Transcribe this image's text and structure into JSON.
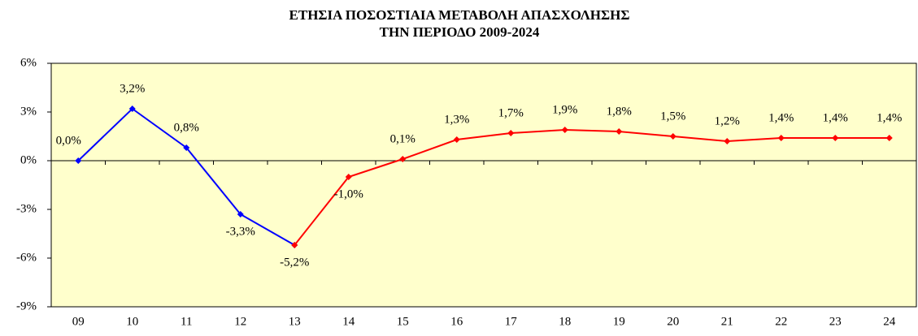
{
  "chart_data": {
    "type": "line",
    "title": "ΕΤΗΣΙΑ ΠΟΣΟΣΤΙΑΙΑ ΜΕΤΑΒΟΛΗ ΑΠΑΣΧΟΛΗΣΗΣ",
    "subtitle": "ΤΗΝ ΠΕΡΙΟΔΟ 2009-2024",
    "categories": [
      "09",
      "10",
      "11",
      "12",
      "13",
      "14",
      "15",
      "16",
      "17",
      "18",
      "19",
      "20",
      "21",
      "22",
      "23",
      "24"
    ],
    "series": [
      {
        "color": "#0000ff",
        "values": [
          0.0,
          3.2,
          0.8,
          -3.3,
          -5.2,
          null,
          null,
          null,
          null,
          null,
          null,
          null,
          null,
          null,
          null,
          null
        ],
        "value_labels": [
          "0,0%",
          "3,2%",
          "0,8%",
          "-3,3%",
          "-5,2%",
          null,
          null,
          null,
          null,
          null,
          null,
          null,
          null,
          null,
          null,
          null
        ]
      },
      {
        "color": "#ff0000",
        "values": [
          null,
          null,
          null,
          null,
          -5.2,
          -1.0,
          0.1,
          1.3,
          1.7,
          1.9,
          1.8,
          1.5,
          1.2,
          1.4,
          1.4,
          1.4
        ],
        "value_labels": [
          null,
          null,
          null,
          null,
          null,
          "-1,0%",
          "0,1%",
          "1,3%",
          "1,7%",
          "1,9%",
          "1,8%",
          "1,5%",
          "1,2%",
          "1,4%",
          "1,4%",
          "1,4%"
        ]
      }
    ],
    "ylim": [
      -9,
      6
    ],
    "yticks": [
      {
        "value": -9,
        "label": "-9%"
      },
      {
        "value": -6,
        "label": "-6%"
      },
      {
        "value": -3,
        "label": "-3%"
      },
      {
        "value": 0,
        "label": "0%"
      },
      {
        "value": 3,
        "label": "3%"
      },
      {
        "value": 6,
        "label": "6%"
      }
    ],
    "grid": false,
    "plot_background": "#ffffcc"
  }
}
